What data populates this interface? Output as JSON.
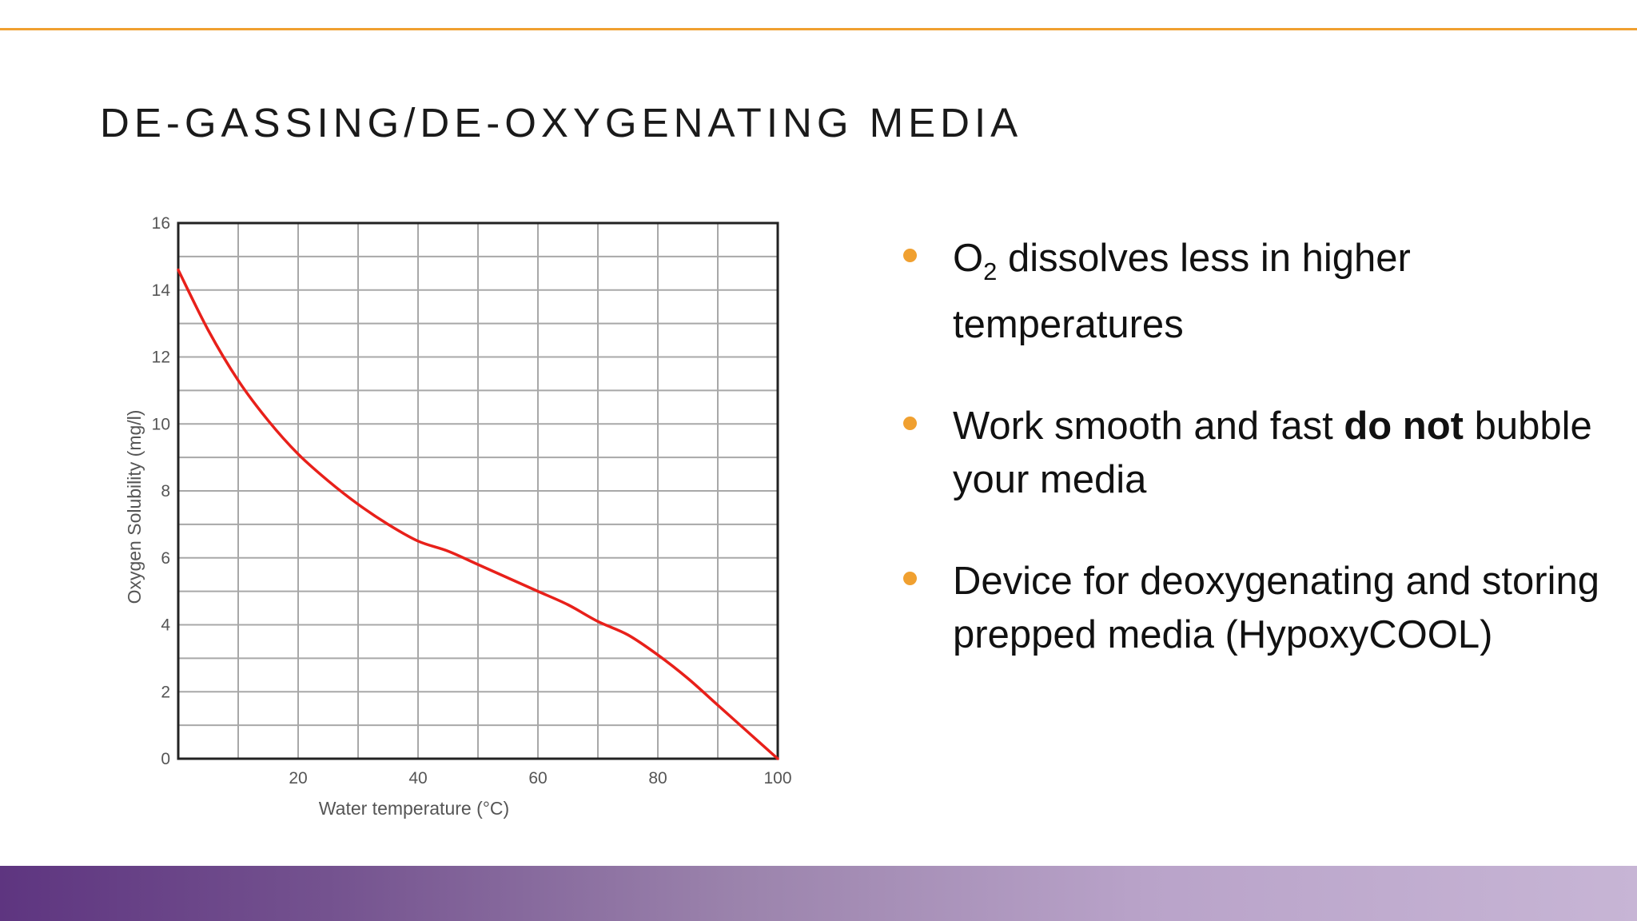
{
  "slide": {
    "title": "DE-GASSING/DE-OXYGENATING MEDIA",
    "accent_color": "#f0a030",
    "footer_colors": [
      "#5e3580",
      "#c7b5d5"
    ]
  },
  "bullets": [
    {
      "prefix": "O",
      "subscript": "2",
      "text": " dissolves less in higher temperatures"
    },
    {
      "text": "Work smooth and fast ",
      "bold": "do not",
      "text_after": " bubble your media"
    },
    {
      "text": "Device for deoxygenating and storing prepped media (HypoxyCOOL)"
    }
  ],
  "chart_data": {
    "type": "line",
    "title": "",
    "xlabel": "Water temperature (°C)",
    "ylabel": "Oxygen Solubility (mg/l)",
    "xlim": [
      0,
      100
    ],
    "ylim": [
      0,
      16
    ],
    "x_ticks": [
      20,
      40,
      60,
      80,
      100
    ],
    "y_ticks": [
      0,
      2,
      4,
      6,
      8,
      10,
      12,
      14,
      16
    ],
    "grid": true,
    "series": [
      {
        "name": "Oxygen solubility",
        "color": "#e8201a",
        "x": [
          0,
          5,
          10,
          15,
          20,
          25,
          30,
          35,
          40,
          45,
          50,
          55,
          60,
          65,
          70,
          75,
          80,
          85,
          90,
          95,
          100
        ],
        "y": [
          14.6,
          12.8,
          11.3,
          10.1,
          9.1,
          8.3,
          7.6,
          7.0,
          6.5,
          6.2,
          5.8,
          5.4,
          5.0,
          4.6,
          4.1,
          3.7,
          3.1,
          2.4,
          1.6,
          0.8,
          0.0
        ]
      }
    ]
  }
}
